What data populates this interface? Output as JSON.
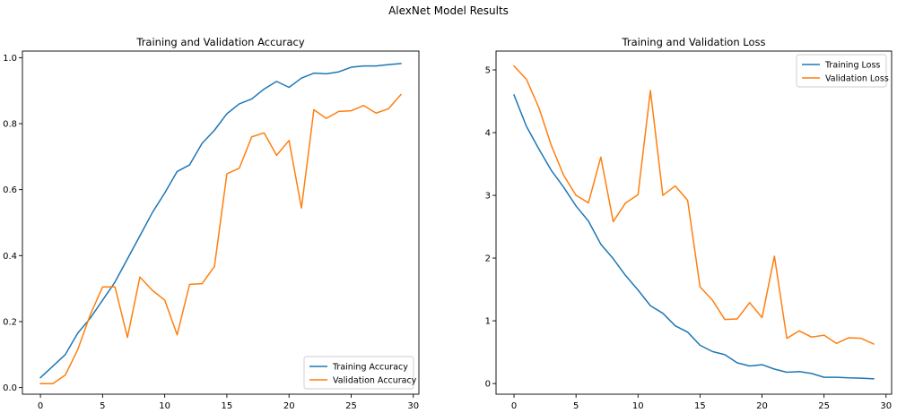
{
  "figure": {
    "title": "AlexNet Model Results"
  },
  "colors": {
    "training": "#1f77b4",
    "validation": "#ff7f0e"
  },
  "chart_data": [
    {
      "id": "accuracy",
      "type": "line",
      "title": "Training and Validation Accuracy",
      "xlabel": "",
      "ylabel": "",
      "xlim": [
        -1.45,
        30.45
      ],
      "ylim": [
        -0.02,
        1.02
      ],
      "xticks": [
        0,
        5,
        10,
        15,
        20,
        25,
        30
      ],
      "xtick_labels": [
        "0",
        "5",
        "10",
        "15",
        "20",
        "25",
        "30"
      ],
      "yticks": [
        0.0,
        0.2,
        0.4,
        0.6,
        0.8,
        1.0
      ],
      "ytick_labels": [
        "0.0",
        "0.2",
        "0.4",
        "0.6",
        "0.8",
        "1.0"
      ],
      "grid": false,
      "legend_position": "lower-right",
      "x": [
        0,
        1,
        2,
        3,
        4,
        5,
        6,
        7,
        8,
        9,
        10,
        11,
        12,
        13,
        14,
        15,
        16,
        17,
        18,
        19,
        20,
        21,
        22,
        23,
        24,
        25,
        26,
        27,
        28,
        29
      ],
      "series": [
        {
          "name": "Training Accuracy",
          "color": "#1f77b4",
          "values": [
            0.03,
            0.065,
            0.1,
            0.165,
            0.21,
            0.265,
            0.32,
            0.39,
            0.46,
            0.53,
            0.59,
            0.655,
            0.675,
            0.74,
            0.78,
            0.83,
            0.86,
            0.875,
            0.905,
            0.928,
            0.91,
            0.938,
            0.953,
            0.951,
            0.957,
            0.971,
            0.975,
            0.975,
            0.979,
            0.982
          ]
        },
        {
          "name": "Validation Accuracy",
          "color": "#ff7f0e",
          "values": [
            0.012,
            0.012,
            0.038,
            0.115,
            0.22,
            0.305,
            0.305,
            0.152,
            0.335,
            0.295,
            0.265,
            0.16,
            0.313,
            0.315,
            0.367,
            0.648,
            0.665,
            0.76,
            0.772,
            0.704,
            0.749,
            0.544,
            0.842,
            0.816,
            0.837,
            0.839,
            0.855,
            0.832,
            0.845,
            0.888
          ]
        }
      ]
    },
    {
      "id": "loss",
      "type": "line",
      "title": "Training and Validation Loss",
      "xlabel": "",
      "ylabel": "",
      "xlim": [
        -1.45,
        30.45
      ],
      "ylim": [
        -0.17,
        5.3
      ],
      "xticks": [
        0,
        5,
        10,
        15,
        20,
        25,
        30
      ],
      "xtick_labels": [
        "0",
        "5",
        "10",
        "15",
        "20",
        "25",
        "30"
      ],
      "yticks": [
        0,
        1,
        2,
        3,
        4,
        5
      ],
      "ytick_labels": [
        "0",
        "1",
        "2",
        "3",
        "4",
        "5"
      ],
      "grid": false,
      "legend_position": "upper-right",
      "x": [
        0,
        1,
        2,
        3,
        4,
        5,
        6,
        7,
        8,
        9,
        10,
        11,
        12,
        13,
        14,
        15,
        16,
        17,
        18,
        19,
        20,
        21,
        22,
        23,
        24,
        25,
        26,
        27,
        28,
        29
      ],
      "series": [
        {
          "name": "Training Loss",
          "color": "#1f77b4",
          "values": [
            4.6,
            4.1,
            3.74,
            3.4,
            3.13,
            2.83,
            2.59,
            2.22,
            1.99,
            1.72,
            1.49,
            1.24,
            1.12,
            0.92,
            0.82,
            0.61,
            0.51,
            0.46,
            0.33,
            0.28,
            0.3,
            0.23,
            0.18,
            0.19,
            0.16,
            0.1,
            0.1,
            0.09,
            0.085,
            0.075
          ]
        },
        {
          "name": "Validation Loss",
          "color": "#ff7f0e",
          "values": [
            5.06,
            4.85,
            4.4,
            3.8,
            3.32,
            3.0,
            2.88,
            3.61,
            2.58,
            2.88,
            3.01,
            4.67,
            3.0,
            3.15,
            2.92,
            1.54,
            1.33,
            1.02,
            1.03,
            1.29,
            1.05,
            2.03,
            0.72,
            0.84,
            0.74,
            0.77,
            0.64,
            0.73,
            0.72,
            0.63
          ]
        }
      ]
    }
  ]
}
